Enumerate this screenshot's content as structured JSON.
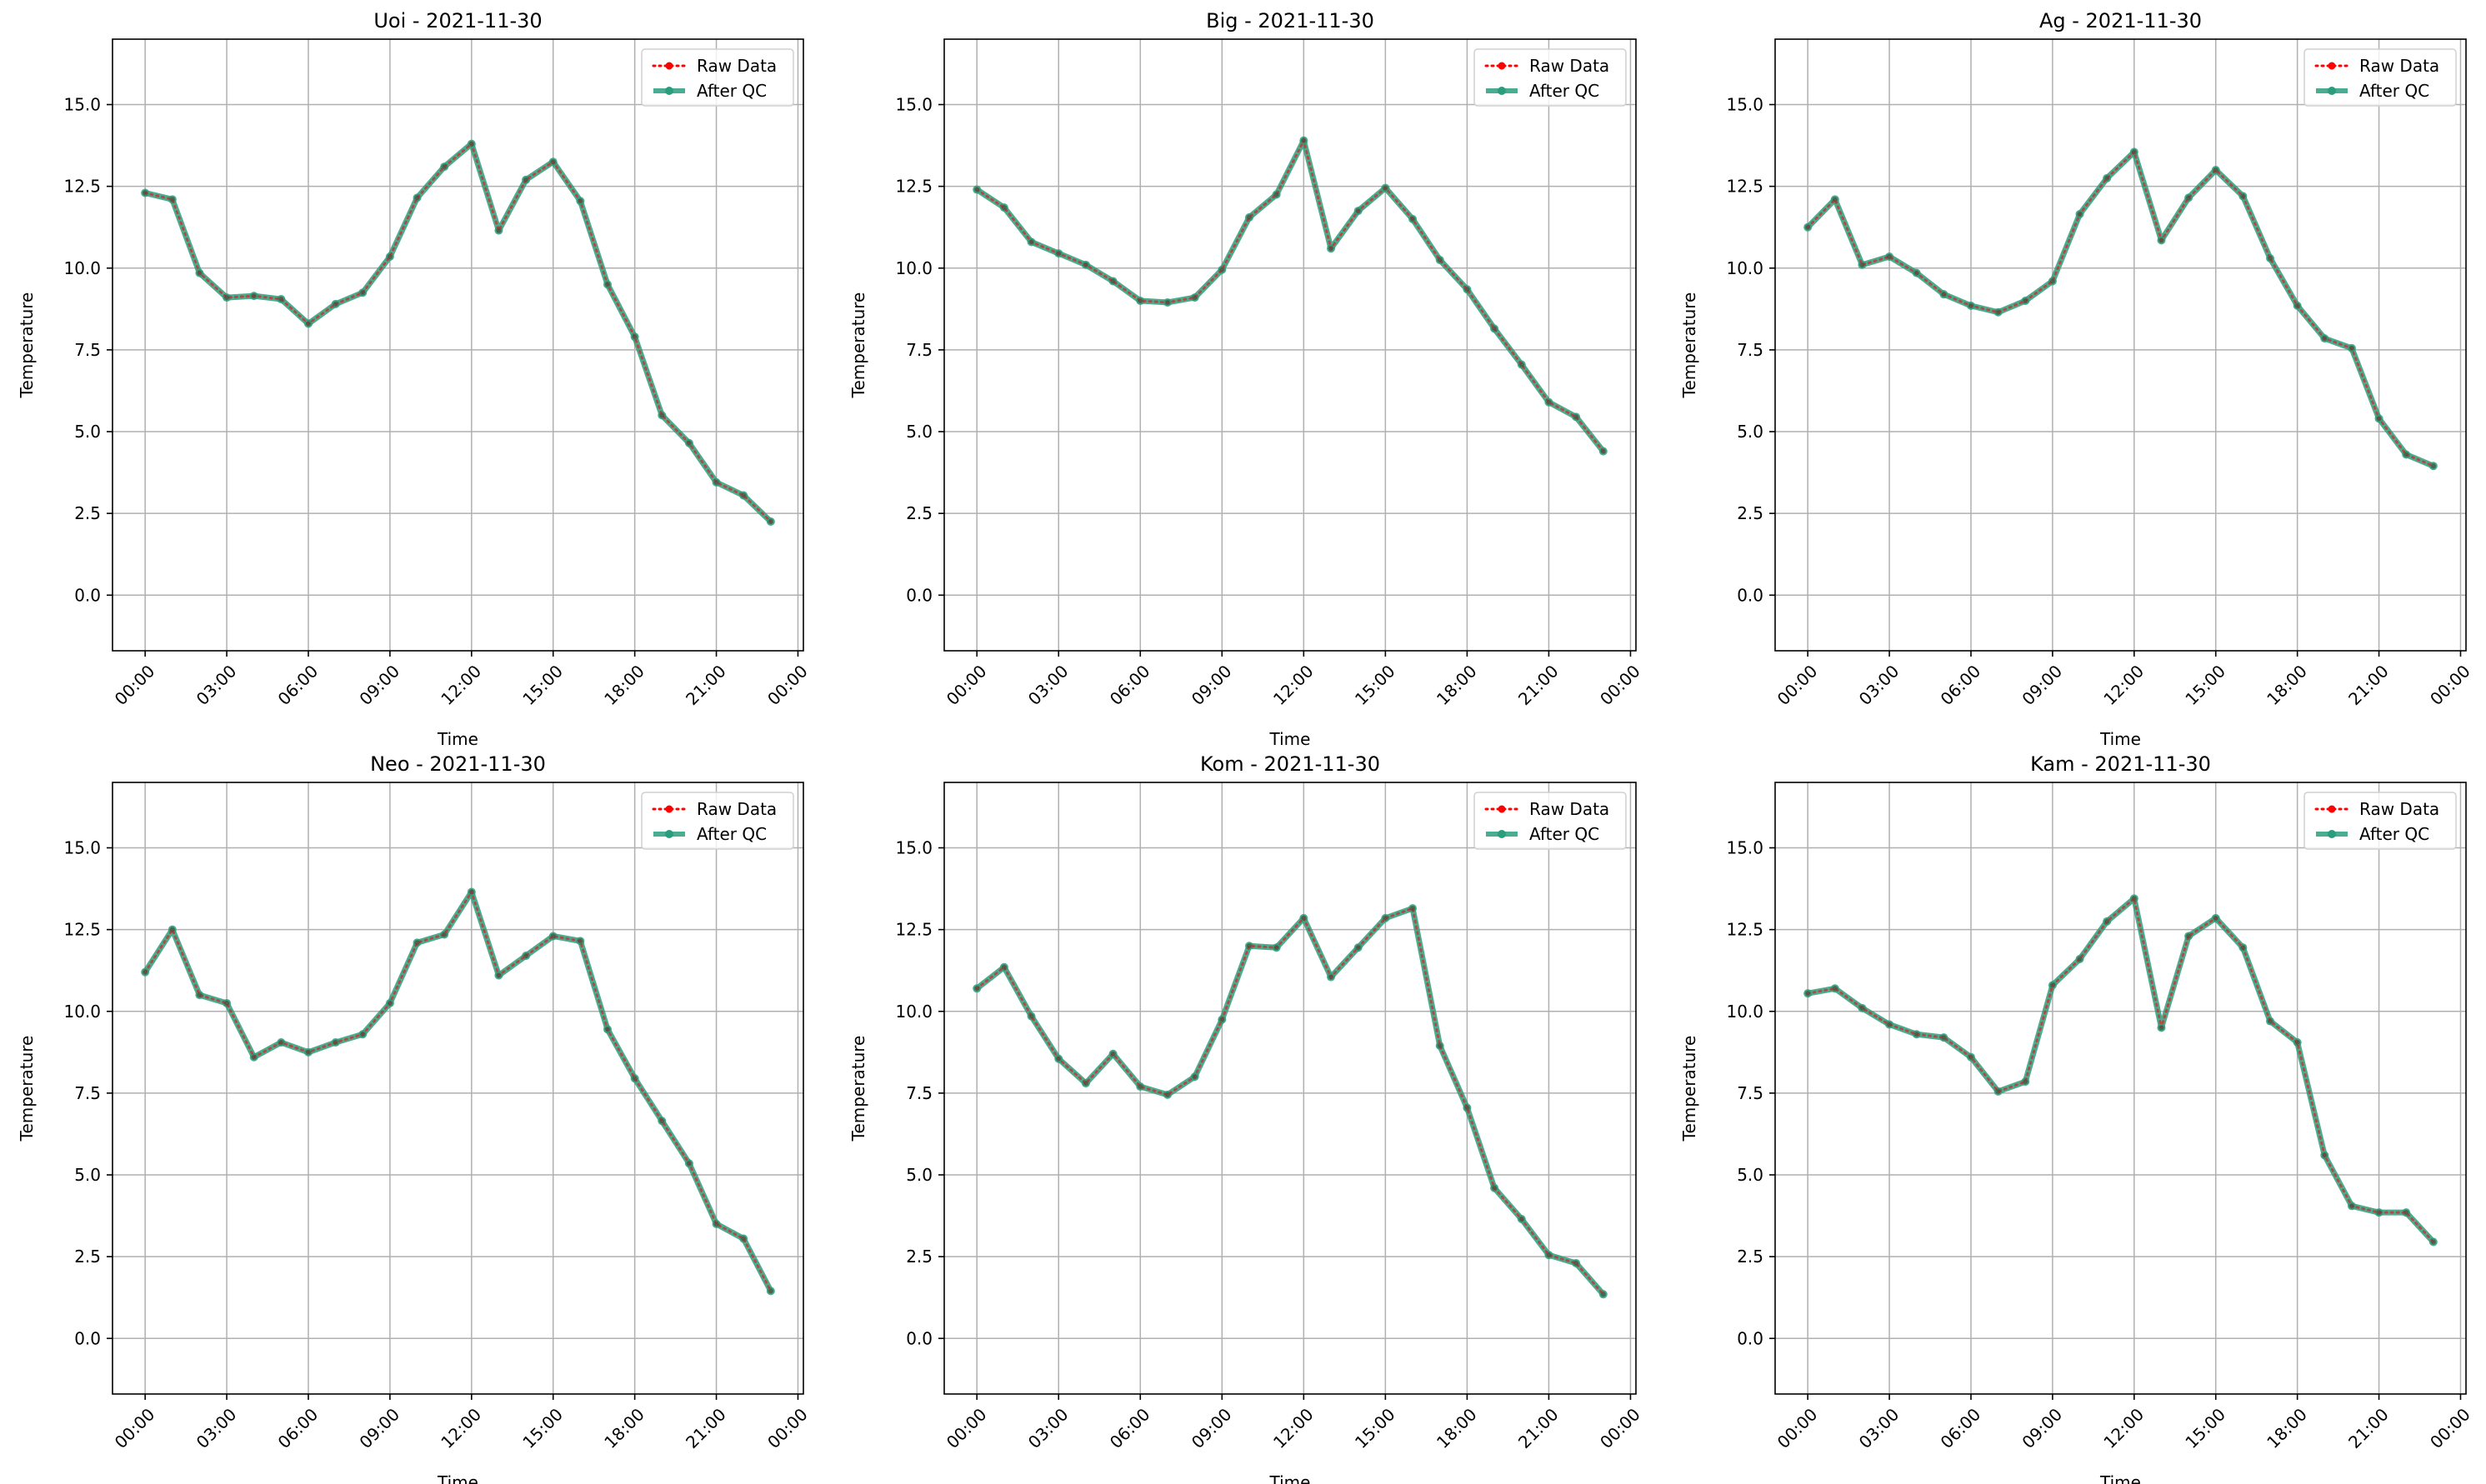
{
  "chart_data": [
    {
      "type": "line",
      "title": "Uoi - 2021-11-30",
      "xlabel": "Time",
      "ylabel": "Temperature",
      "xlim_hours": [
        -1.2,
        24.2
      ],
      "ylim": [
        -1.7,
        17.0
      ],
      "x_ticks": [
        "00:00",
        "03:00",
        "06:00",
        "09:00",
        "12:00",
        "15:00",
        "18:00",
        "21:00",
        "00:00"
      ],
      "y_ticks": [
        "0.0",
        "2.5",
        "5.0",
        "7.5",
        "10.0",
        "12.5",
        "15.0"
      ],
      "grid": true,
      "legend_position": "top-right",
      "x": [
        "00:00",
        "01:00",
        "02:00",
        "03:00",
        "04:00",
        "05:00",
        "06:00",
        "07:00",
        "08:00",
        "09:00",
        "10:00",
        "11:00",
        "12:00",
        "13:00",
        "14:00",
        "15:00",
        "16:00",
        "17:00",
        "18:00",
        "19:00",
        "20:00",
        "21:00",
        "22:00",
        "23:00"
      ],
      "series": [
        {
          "name": "Raw Data",
          "color": "#ff0000",
          "style": "dotted",
          "values": [
            12.3,
            12.1,
            9.85,
            9.1,
            9.15,
            9.05,
            8.3,
            8.9,
            9.25,
            10.35,
            12.15,
            13.1,
            13.8,
            11.15,
            12.7,
            13.25,
            12.05,
            9.5,
            7.9,
            5.5,
            4.65,
            3.45,
            3.05,
            2.25
          ]
        },
        {
          "name": "After QC",
          "color": "#2a9d7e",
          "style": "solid",
          "values": [
            12.3,
            12.1,
            9.85,
            9.1,
            9.15,
            9.05,
            8.3,
            8.9,
            9.25,
            10.35,
            12.15,
            13.1,
            13.8,
            11.15,
            12.7,
            13.25,
            12.05,
            9.5,
            7.9,
            5.5,
            4.65,
            3.45,
            3.05,
            2.25
          ]
        }
      ]
    },
    {
      "type": "line",
      "title": "Big - 2021-11-30",
      "xlabel": "Time",
      "ylabel": "Temperature",
      "xlim_hours": [
        -1.2,
        24.2
      ],
      "ylim": [
        -1.7,
        17.0
      ],
      "x_ticks": [
        "00:00",
        "03:00",
        "06:00",
        "09:00",
        "12:00",
        "15:00",
        "18:00",
        "21:00",
        "00:00"
      ],
      "y_ticks": [
        "0.0",
        "2.5",
        "5.0",
        "7.5",
        "10.0",
        "12.5",
        "15.0"
      ],
      "grid": true,
      "legend_position": "top-right",
      "x": [
        "00:00",
        "01:00",
        "02:00",
        "03:00",
        "04:00",
        "05:00",
        "06:00",
        "07:00",
        "08:00",
        "09:00",
        "10:00",
        "11:00",
        "12:00",
        "13:00",
        "14:00",
        "15:00",
        "16:00",
        "17:00",
        "18:00",
        "19:00",
        "20:00",
        "21:00",
        "22:00",
        "23:00"
      ],
      "series": [
        {
          "name": "Raw Data",
          "color": "#ff0000",
          "style": "dotted",
          "values": [
            12.4,
            11.85,
            10.8,
            10.45,
            10.1,
            9.6,
            9.0,
            8.95,
            9.1,
            9.95,
            11.55,
            12.25,
            13.9,
            10.6,
            11.75,
            12.45,
            11.5,
            10.25,
            9.35,
            8.15,
            7.05,
            5.9,
            5.45,
            4.4
          ]
        },
        {
          "name": "After QC",
          "color": "#2a9d7e",
          "style": "solid",
          "values": [
            12.4,
            11.85,
            10.8,
            10.45,
            10.1,
            9.6,
            9.0,
            8.95,
            9.1,
            9.95,
            11.55,
            12.25,
            13.9,
            10.6,
            11.75,
            12.45,
            11.5,
            10.25,
            9.35,
            8.15,
            7.05,
            5.9,
            5.45,
            4.4
          ]
        }
      ]
    },
    {
      "type": "line",
      "title": "Ag - 2021-11-30",
      "xlabel": "Time",
      "ylabel": "Temperature",
      "xlim_hours": [
        -1.2,
        24.2
      ],
      "ylim": [
        -1.7,
        17.0
      ],
      "x_ticks": [
        "00:00",
        "03:00",
        "06:00",
        "09:00",
        "12:00",
        "15:00",
        "18:00",
        "21:00",
        "00:00"
      ],
      "y_ticks": [
        "0.0",
        "2.5",
        "5.0",
        "7.5",
        "10.0",
        "12.5",
        "15.0"
      ],
      "grid": true,
      "legend_position": "top-right",
      "x": [
        "00:00",
        "01:00",
        "02:00",
        "03:00",
        "04:00",
        "05:00",
        "06:00",
        "07:00",
        "08:00",
        "09:00",
        "10:00",
        "11:00",
        "12:00",
        "13:00",
        "14:00",
        "15:00",
        "16:00",
        "17:00",
        "18:00",
        "19:00",
        "20:00",
        "21:00",
        "22:00",
        "23:00"
      ],
      "series": [
        {
          "name": "Raw Data",
          "color": "#ff0000",
          "style": "dotted",
          "values": [
            11.25,
            12.1,
            10.1,
            10.35,
            9.85,
            9.2,
            8.85,
            8.65,
            9.0,
            9.6,
            11.65,
            12.75,
            13.55,
            10.85,
            12.15,
            13.0,
            12.2,
            10.3,
            8.85,
            7.85,
            7.55,
            5.4,
            4.3,
            3.95
          ]
        },
        {
          "name": "After QC",
          "color": "#2a9d7e",
          "style": "solid",
          "values": [
            11.25,
            12.1,
            10.1,
            10.35,
            9.85,
            9.2,
            8.85,
            8.65,
            9.0,
            9.6,
            11.65,
            12.75,
            13.55,
            10.85,
            12.15,
            13.0,
            12.2,
            10.3,
            8.85,
            7.85,
            7.55,
            5.4,
            4.3,
            3.95
          ]
        }
      ]
    },
    {
      "type": "line",
      "title": "Neo - 2021-11-30",
      "xlabel": "Time",
      "ylabel": "Temperature",
      "xlim_hours": [
        -1.2,
        24.2
      ],
      "ylim": [
        -1.7,
        17.0
      ],
      "x_ticks": [
        "00:00",
        "03:00",
        "06:00",
        "09:00",
        "12:00",
        "15:00",
        "18:00",
        "21:00",
        "00:00"
      ],
      "y_ticks": [
        "0.0",
        "2.5",
        "5.0",
        "7.5",
        "10.0",
        "12.5",
        "15.0"
      ],
      "grid": true,
      "legend_position": "top-right",
      "x": [
        "00:00",
        "01:00",
        "02:00",
        "03:00",
        "04:00",
        "05:00",
        "06:00",
        "07:00",
        "08:00",
        "09:00",
        "10:00",
        "11:00",
        "12:00",
        "13:00",
        "14:00",
        "15:00",
        "16:00",
        "17:00",
        "18:00",
        "19:00",
        "20:00",
        "21:00",
        "22:00",
        "23:00"
      ],
      "series": [
        {
          "name": "Raw Data",
          "color": "#ff0000",
          "style": "dotted",
          "values": [
            11.2,
            12.5,
            10.5,
            10.25,
            8.6,
            9.05,
            8.75,
            9.05,
            9.3,
            10.25,
            12.1,
            12.35,
            13.65,
            11.1,
            11.7,
            12.3,
            12.15,
            9.45,
            7.95,
            6.65,
            5.35,
            3.5,
            3.05,
            1.45
          ]
        },
        {
          "name": "After QC",
          "color": "#2a9d7e",
          "style": "solid",
          "values": [
            11.2,
            12.5,
            10.5,
            10.25,
            8.6,
            9.05,
            8.75,
            9.05,
            9.3,
            10.25,
            12.1,
            12.35,
            13.65,
            11.1,
            11.7,
            12.3,
            12.15,
            9.45,
            7.95,
            6.65,
            5.35,
            3.5,
            3.05,
            1.45
          ]
        }
      ]
    },
    {
      "type": "line",
      "title": "Kom - 2021-11-30",
      "xlabel": "Time",
      "ylabel": "Temperature",
      "xlim_hours": [
        -1.2,
        24.2
      ],
      "ylim": [
        -1.7,
        17.0
      ],
      "x_ticks": [
        "00:00",
        "03:00",
        "06:00",
        "09:00",
        "12:00",
        "15:00",
        "18:00",
        "21:00",
        "00:00"
      ],
      "y_ticks": [
        "0.0",
        "2.5",
        "5.0",
        "7.5",
        "10.0",
        "12.5",
        "15.0"
      ],
      "grid": true,
      "legend_position": "top-right",
      "x": [
        "00:00",
        "01:00",
        "02:00",
        "03:00",
        "04:00",
        "05:00",
        "06:00",
        "07:00",
        "08:00",
        "09:00",
        "10:00",
        "11:00",
        "12:00",
        "13:00",
        "14:00",
        "15:00",
        "16:00",
        "17:00",
        "18:00",
        "19:00",
        "20:00",
        "21:00",
        "22:00",
        "23:00"
      ],
      "series": [
        {
          "name": "Raw Data",
          "color": "#ff0000",
          "style": "dotted",
          "values": [
            10.7,
            11.35,
            9.85,
            8.55,
            7.8,
            8.7,
            7.7,
            7.45,
            8.0,
            9.75,
            12.0,
            11.95,
            12.85,
            11.05,
            11.95,
            12.85,
            13.15,
            8.95,
            7.05,
            4.6,
            3.65,
            2.55,
            2.3,
            1.35
          ]
        },
        {
          "name": "After QC",
          "color": "#2a9d7e",
          "style": "solid",
          "values": [
            10.7,
            11.35,
            9.85,
            8.55,
            7.8,
            8.7,
            7.7,
            7.45,
            8.0,
            9.75,
            12.0,
            11.95,
            12.85,
            11.05,
            11.95,
            12.85,
            13.15,
            8.95,
            7.05,
            4.6,
            3.65,
            2.55,
            2.3,
            1.35
          ]
        }
      ]
    },
    {
      "type": "line",
      "title": "Kam - 2021-11-30",
      "xlabel": "Time",
      "ylabel": "Temperature",
      "xlim_hours": [
        -1.2,
        24.2
      ],
      "ylim": [
        -1.7,
        17.0
      ],
      "x_ticks": [
        "00:00",
        "03:00",
        "06:00",
        "09:00",
        "12:00",
        "15:00",
        "18:00",
        "21:00",
        "00:00"
      ],
      "y_ticks": [
        "0.0",
        "2.5",
        "5.0",
        "7.5",
        "10.0",
        "12.5",
        "15.0"
      ],
      "grid": true,
      "legend_position": "top-right",
      "x": [
        "00:00",
        "01:00",
        "02:00",
        "03:00",
        "04:00",
        "05:00",
        "06:00",
        "07:00",
        "08:00",
        "09:00",
        "10:00",
        "11:00",
        "12:00",
        "13:00",
        "14:00",
        "15:00",
        "16:00",
        "17:00",
        "18:00",
        "19:00",
        "20:00",
        "21:00",
        "22:00",
        "23:00"
      ],
      "series": [
        {
          "name": "Raw Data",
          "color": "#ff0000",
          "style": "dotted",
          "values": [
            10.55,
            10.7,
            10.1,
            9.6,
            9.3,
            9.2,
            8.6,
            7.55,
            7.85,
            10.8,
            11.6,
            12.75,
            13.45,
            9.5,
            12.3,
            12.85,
            11.95,
            9.7,
            9.05,
            5.6,
            4.05,
            3.85,
            3.85,
            2.95
          ]
        },
        {
          "name": "After QC",
          "color": "#2a9d7e",
          "style": "solid",
          "values": [
            10.55,
            10.7,
            10.1,
            9.6,
            9.3,
            9.2,
            8.6,
            7.55,
            7.85,
            10.8,
            11.6,
            12.75,
            13.45,
            9.5,
            12.3,
            12.85,
            11.95,
            9.7,
            9.05,
            5.6,
            4.05,
            3.85,
            3.85,
            2.95
          ]
        }
      ]
    }
  ]
}
